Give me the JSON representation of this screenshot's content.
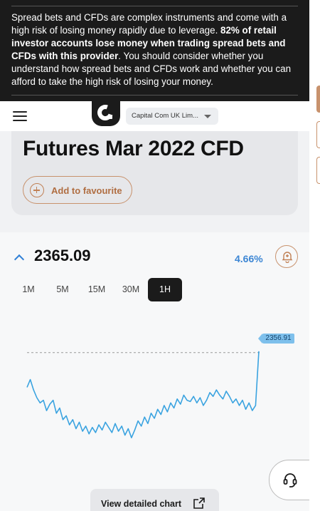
{
  "risk_warning": {
    "text_1": "Spread bets and CFDs are complex instruments and come with a high risk of losing money rapidly due to leverage. ",
    "text_bold": "82% of retail investor accounts lose money when trading spread bets and CFDs with this provider",
    "text_2": ". You should consider whether you understand how spread bets and CFDs work and whether you can afford to take the high risk of losing your money."
  },
  "navbar": {
    "menu_icon": "hamburger-menu-icon",
    "logo_icon": "capital-com-logo-icon",
    "entity_selector": "Capital Com UK Lim..."
  },
  "instrument": {
    "title": "Futures Mar 2022 CFD",
    "favourite_label": "Add to favourite"
  },
  "quote": {
    "price": "2365.09",
    "change": "4.66%",
    "direction_icon": "chevron-up-icon",
    "alert_icon": "bell-plus-icon"
  },
  "timeframes": {
    "items": [
      "1M",
      "5M",
      "15M",
      "30M",
      "1H"
    ],
    "selected": "1H"
  },
  "chart_data": {
    "type": "line",
    "title": "",
    "xlabel": "",
    "ylabel": "",
    "last_price_label": "2356.91",
    "ylim": [
      2290,
      2370
    ],
    "values": [
      2330,
      2336,
      2328,
      2322,
      2318,
      2320,
      2312,
      2317,
      2320,
      2310,
      2314,
      2305,
      2308,
      2301,
      2305,
      2298,
      2303,
      2296,
      2300,
      2294,
      2299,
      2295,
      2301,
      2297,
      2303,
      2299,
      2295,
      2302,
      2296,
      2300,
      2293,
      2298,
      2291,
      2297,
      2304,
      2300,
      2307,
      2302,
      2310,
      2306,
      2313,
      2309,
      2316,
      2311,
      2318,
      2314,
      2321,
      2317,
      2324,
      2320,
      2319,
      2323,
      2318,
      2322,
      2316,
      2320,
      2326,
      2323,
      2328,
      2324,
      2321,
      2327,
      2323,
      2318,
      2321,
      2316,
      2320,
      2313,
      2318,
      2312,
      2316,
      2358
    ]
  },
  "colors": {
    "line": "#3aa3e0",
    "accent": "#c8926d",
    "dark": "#1b1b1b"
  },
  "actions": {
    "view_chart_label": "View detailed chart",
    "view_chart_icon": "expand-icon",
    "support_icon": "headset-support-icon"
  }
}
